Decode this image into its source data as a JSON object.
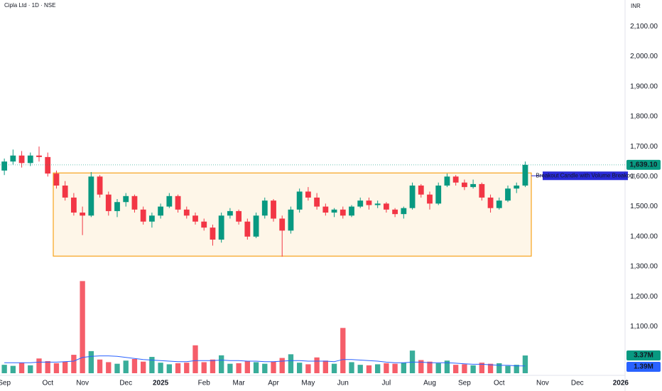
{
  "chart_data": {
    "type": "candlestick",
    "title": "Cipla Ltd · 1D · NSE",
    "currency": "INR",
    "up_color": "#089981",
    "down_color": "#f23645",
    "categories": [
      "Sep",
      null,
      null,
      null,
      null,
      "Oct",
      null,
      null,
      null,
      "Nov",
      null,
      null,
      null,
      null,
      "Dec",
      null,
      null,
      null,
      "2025",
      null,
      null,
      null,
      null,
      "Feb",
      null,
      null,
      null,
      "Mar",
      null,
      null,
      null,
      "Apr",
      null,
      null,
      null,
      "May",
      null,
      null,
      null,
      "Jun",
      null,
      null,
      null,
      null,
      "Jul",
      null,
      null,
      null,
      null,
      "Aug",
      null,
      null,
      null,
      "Sep",
      null,
      null,
      null,
      "Oct",
      null,
      null,
      null,
      null,
      "Nov",
      null,
      null,
      null,
      "Dec",
      null,
      null,
      null,
      null,
      "2026"
    ],
    "ohlc": [
      [
        1620,
        1660,
        1605,
        1650
      ],
      [
        1650,
        1690,
        1640,
        1670
      ],
      [
        1670,
        1685,
        1630,
        1645
      ],
      [
        1645,
        1680,
        1635,
        1670
      ],
      [
        1670,
        1700,
        1650,
        1665
      ],
      [
        1665,
        1680,
        1600,
        1610
      ],
      [
        1610,
        1620,
        1560,
        1570
      ],
      [
        1570,
        1585,
        1520,
        1530
      ],
      [
        1530,
        1545,
        1470,
        1480
      ],
      [
        1480,
        1500,
        1405,
        1470
      ],
      [
        1470,
        1615,
        1465,
        1600
      ],
      [
        1600,
        1605,
        1530,
        1540
      ],
      [
        1540,
        1550,
        1470,
        1485
      ],
      [
        1485,
        1525,
        1465,
        1515
      ],
      [
        1515,
        1545,
        1500,
        1535
      ],
      [
        1535,
        1540,
        1480,
        1490
      ],
      [
        1490,
        1500,
        1440,
        1450
      ],
      [
        1450,
        1480,
        1430,
        1470
      ],
      [
        1470,
        1510,
        1460,
        1500
      ],
      [
        1500,
        1545,
        1495,
        1535
      ],
      [
        1535,
        1540,
        1480,
        1490
      ],
      [
        1490,
        1500,
        1460,
        1470
      ],
      [
        1470,
        1480,
        1440,
        1450
      ],
      [
        1450,
        1460,
        1420,
        1430
      ],
      [
        1430,
        1440,
        1370,
        1390
      ],
      [
        1390,
        1480,
        1380,
        1470
      ],
      [
        1470,
        1495,
        1460,
        1485
      ],
      [
        1485,
        1490,
        1440,
        1450
      ],
      [
        1450,
        1460,
        1390,
        1400
      ],
      [
        1400,
        1480,
        1395,
        1470
      ],
      [
        1470,
        1530,
        1460,
        1520
      ],
      [
        1520,
        1525,
        1450,
        1460
      ],
      [
        1460,
        1470,
        1333,
        1420
      ],
      [
        1420,
        1500,
        1410,
        1490
      ],
      [
        1490,
        1560,
        1480,
        1550
      ],
      [
        1550,
        1565,
        1520,
        1530
      ],
      [
        1530,
        1545,
        1490,
        1500
      ],
      [
        1500,
        1510,
        1470,
        1480
      ],
      [
        1480,
        1495,
        1465,
        1490
      ],
      [
        1490,
        1500,
        1460,
        1470
      ],
      [
        1470,
        1505,
        1465,
        1500
      ],
      [
        1500,
        1530,
        1495,
        1520
      ],
      [
        1520,
        1530,
        1490,
        1505
      ],
      [
        1505,
        1520,
        1495,
        1510
      ],
      [
        1510,
        1515,
        1480,
        1490
      ],
      [
        1490,
        1495,
        1465,
        1475
      ],
      [
        1475,
        1500,
        1460,
        1495
      ],
      [
        1495,
        1580,
        1490,
        1570
      ],
      [
        1570,
        1575,
        1530,
        1540
      ],
      [
        1540,
        1550,
        1490,
        1510
      ],
      [
        1510,
        1580,
        1505,
        1570
      ],
      [
        1570,
        1610,
        1565,
        1600
      ],
      [
        1600,
        1605,
        1570,
        1580
      ],
      [
        1580,
        1590,
        1555,
        1565
      ],
      [
        1565,
        1590,
        1560,
        1575
      ],
      [
        1575,
        1580,
        1520,
        1530
      ],
      [
        1530,
        1540,
        1480,
        1495
      ],
      [
        1495,
        1530,
        1490,
        1520
      ],
      [
        1520,
        1570,
        1515,
        1560
      ],
      [
        1560,
        1580,
        1545,
        1570
      ],
      [
        1570,
        1650,
        1565,
        1639.1
      ],
      null,
      null,
      null,
      null,
      null,
      null,
      null,
      null,
      null,
      null,
      null
    ],
    "ylim": [
      945,
      2188
    ],
    "yticks": [
      {
        "value": 1100,
        "label": "1,100.00"
      },
      {
        "value": 1200,
        "label": "1,200.00"
      },
      {
        "value": 1300,
        "label": "1,300.00"
      },
      {
        "value": 1400,
        "label": "1,400.00"
      },
      {
        "value": 1500,
        "label": "1,500.00"
      },
      {
        "value": 1600,
        "label": "1,600.00"
      },
      {
        "value": 1700,
        "label": "1,700.00"
      },
      {
        "value": 1800,
        "label": "1,800.00"
      },
      {
        "value": 1900,
        "label": "1,900.00"
      },
      {
        "value": 2000,
        "label": "2,000.00"
      },
      {
        "value": 2100,
        "label": "2,100.00"
      }
    ],
    "last_price": {
      "value": 1639.1,
      "label": "1,639.10"
    },
    "box": {
      "top": 1612,
      "bottom": 1335,
      "color": "#f7a31c"
    },
    "annotation": "Breakout Candle with Volume Breakout",
    "volume": {
      "ylim": [
        0,
        27
      ],
      "values": [
        1.6,
        1.4,
        2.0,
        1.5,
        2.8,
        2.3,
        1.9,
        2.2,
        3.5,
        17.5,
        4.2,
        2.6,
        2.1,
        1.8,
        2.4,
        2.7,
        2.2,
        3.1,
        2.0,
        1.7,
        1.9,
        2.0,
        5.3,
        2.1,
        2.6,
        3.4,
        1.8,
        1.9,
        2.3,
        2.1,
        1.8,
        2.2,
        2.9,
        3.6,
        2.0,
        1.7,
        3.0,
        2.4,
        1.8,
        8.6,
        2.1,
        1.6,
        1.5,
        1.7,
        1.9,
        1.8,
        2.0,
        4.3,
        2.5,
        2.2,
        1.9,
        2.4,
        1.6,
        1.7,
        1.5,
        2.0,
        1.8,
        1.9,
        1.4,
        1.6,
        3.37,
        null,
        null,
        null,
        null,
        null,
        null,
        null,
        null,
        null,
        null,
        null
      ],
      "value_label": {
        "value": 3.37,
        "label": "3.37M"
      },
      "ma": {
        "color": "#2962ff",
        "values": [
          2.0,
          2.0,
          2.0,
          2.0,
          2.1,
          2.1,
          2.1,
          2.2,
          2.3,
          3.0,
          3.2,
          3.3,
          3.3,
          3.2,
          3.0,
          2.8,
          2.6,
          2.5,
          2.4,
          2.3,
          2.2,
          2.2,
          2.4,
          2.4,
          2.4,
          2.5,
          2.4,
          2.4,
          2.3,
          2.3,
          2.2,
          2.2,
          2.3,
          2.4,
          2.4,
          2.3,
          2.3,
          2.3,
          2.2,
          2.6,
          2.6,
          2.5,
          2.4,
          2.3,
          2.1,
          2.0,
          2.0,
          2.1,
          2.1,
          2.0,
          2.0,
          2.0,
          1.9,
          1.8,
          1.7,
          1.7,
          1.6,
          1.5,
          1.5,
          1.4,
          1.39,
          null,
          null,
          null,
          null,
          null,
          null,
          null,
          null,
          null,
          null,
          null
        ]
      },
      "ma_label": {
        "value": 1.39,
        "label": "1.39M"
      }
    }
  }
}
